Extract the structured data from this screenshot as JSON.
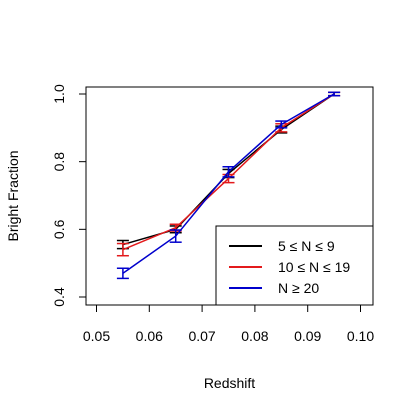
{
  "chart_data": {
    "type": "line",
    "xlabel": "Redshift",
    "ylabel": "Bright Fraction",
    "xlim": [
      0.05,
      0.1
    ],
    "ylim": [
      0.4,
      1.0
    ],
    "x_ticks": [
      "0.05",
      "0.06",
      "0.07",
      "0.08",
      "0.09",
      "0.10"
    ],
    "y_ticks": [
      "0.4",
      "0.6",
      "0.8",
      "1.0"
    ],
    "legend_position": "bottom-right",
    "series": [
      {
        "name": "5 ≤ N ≤ 9",
        "color": "#000000",
        "x": [
          0.055,
          0.065,
          0.075,
          0.085,
          0.095
        ],
        "y": [
          0.555,
          0.6,
          0.765,
          0.895,
          1.0
        ],
        "err": [
          0.012,
          0.01,
          0.012,
          0.01,
          0.005
        ]
      },
      {
        "name": "10 ≤ N ≤ 19",
        "color": "#e31a1c",
        "x": [
          0.055,
          0.065,
          0.075,
          0.085,
          0.095
        ],
        "y": [
          0.54,
          0.605,
          0.75,
          0.9,
          1.0
        ],
        "err": [
          0.018,
          0.01,
          0.012,
          0.012,
          0.005
        ]
      },
      {
        "name": "N ≥ 20",
        "color": "#0000cc",
        "x": [
          0.055,
          0.065,
          0.075,
          0.085,
          0.095
        ],
        "y": [
          0.47,
          0.58,
          0.77,
          0.91,
          1.0
        ],
        "err": [
          0.015,
          0.018,
          0.015,
          0.01,
          0.005
        ]
      }
    ]
  }
}
